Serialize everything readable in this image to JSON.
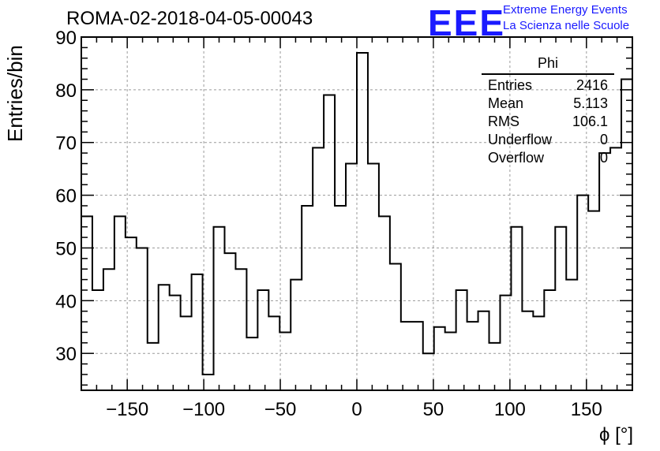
{
  "title": "ROMA-02-2018-04-05-00043",
  "logo": {
    "text": "EEE",
    "line1": "Extreme Energy Events",
    "line2": "La Scienza nelle Scuole",
    "color": "#1a1aff"
  },
  "stats": {
    "title": "Phi",
    "rows": [
      {
        "label": "Entries",
        "value": "2416"
      },
      {
        "label": "Mean",
        "value": "5.113"
      },
      {
        "label": "RMS",
        "value": "106.1"
      },
      {
        "label": "Underflow",
        "value": "0"
      },
      {
        "label": "Overflow",
        "value": "0"
      }
    ]
  },
  "chart_data": {
    "type": "bar",
    "title": "ROMA-02-2018-04-05-00043",
    "xlabel": "ϕ [°]",
    "ylabel": "Entries/bin",
    "xlim": [
      -180,
      180
    ],
    "ylim": [
      23,
      90
    ],
    "bin_width": 7.2,
    "x_ticks": [
      -150,
      -100,
      -50,
      0,
      50,
      100,
      150
    ],
    "y_ticks": [
      30,
      40,
      50,
      60,
      70,
      80,
      90
    ],
    "grid": true,
    "values": [
      56,
      42,
      46,
      56,
      52,
      50,
      32,
      43,
      41,
      37,
      45,
      26,
      54,
      49,
      46,
      33,
      42,
      37,
      34,
      44,
      58,
      69,
      79,
      58,
      66,
      87,
      66,
      56,
      47,
      36,
      36,
      30,
      35,
      34,
      42,
      36,
      38,
      32,
      41,
      54,
      38,
      37,
      42,
      54,
      44,
      60,
      57,
      68,
      69,
      82
    ]
  }
}
